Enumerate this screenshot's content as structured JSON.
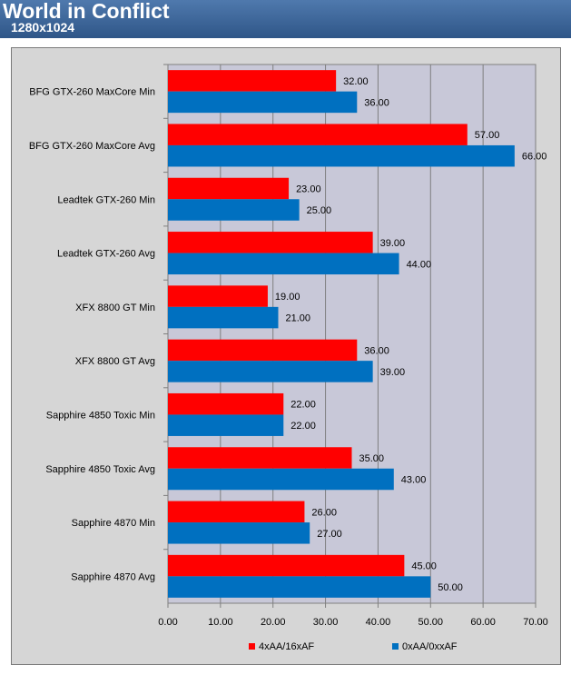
{
  "header": {
    "title": "World in Conflict",
    "subtitle": "1280x1024"
  },
  "colors": {
    "header_bg": "#3b6397",
    "plot_bg": "#c8c8d8",
    "series_red": "#ff0000",
    "series_blue": "#0070c0"
  },
  "chart_data": {
    "type": "bar",
    "orientation": "horizontal",
    "categories": [
      "BFG GTX-260 MaxCore Min",
      "BFG GTX-260 MaxCore Avg",
      "Leadtek GTX-260 Min",
      "Leadtek GTX-260 Avg",
      "XFX 8800 GT Min",
      "XFX 8800 GT Avg",
      "Sapphire 4850 Toxic Min",
      "Sapphire 4850 Toxic Avg",
      "Sapphire 4870 Min",
      "Sapphire 4870 Avg"
    ],
    "series": [
      {
        "name": "4xAA/16xAF",
        "color": "#ff0000",
        "values": [
          32,
          57,
          23,
          39,
          19,
          36,
          22,
          35,
          26,
          45
        ],
        "labels": [
          "32.00",
          "57.00",
          "23.00",
          "39.00",
          "19.00",
          "36.00",
          "22.00",
          "35.00",
          "26.00",
          "45.00"
        ]
      },
      {
        "name": "0xAA/0xxAF",
        "color": "#0070c0",
        "values": [
          36,
          66,
          25,
          44,
          21,
          39,
          22,
          43,
          27,
          50
        ],
        "labels": [
          "36.00",
          "66.00",
          "25.00",
          "44.00",
          "21.00",
          "39.00",
          "22.00",
          "43.00",
          "27.00",
          "50.00"
        ]
      }
    ],
    "xlim": [
      0,
      70
    ],
    "xticks": [
      0,
      10,
      20,
      30,
      40,
      50,
      60,
      70
    ],
    "xtick_labels": [
      "0.00",
      "10.00",
      "20.00",
      "30.00",
      "40.00",
      "50.00",
      "60.00",
      "70.00"
    ],
    "grid": true,
    "legend_position": "bottom"
  }
}
